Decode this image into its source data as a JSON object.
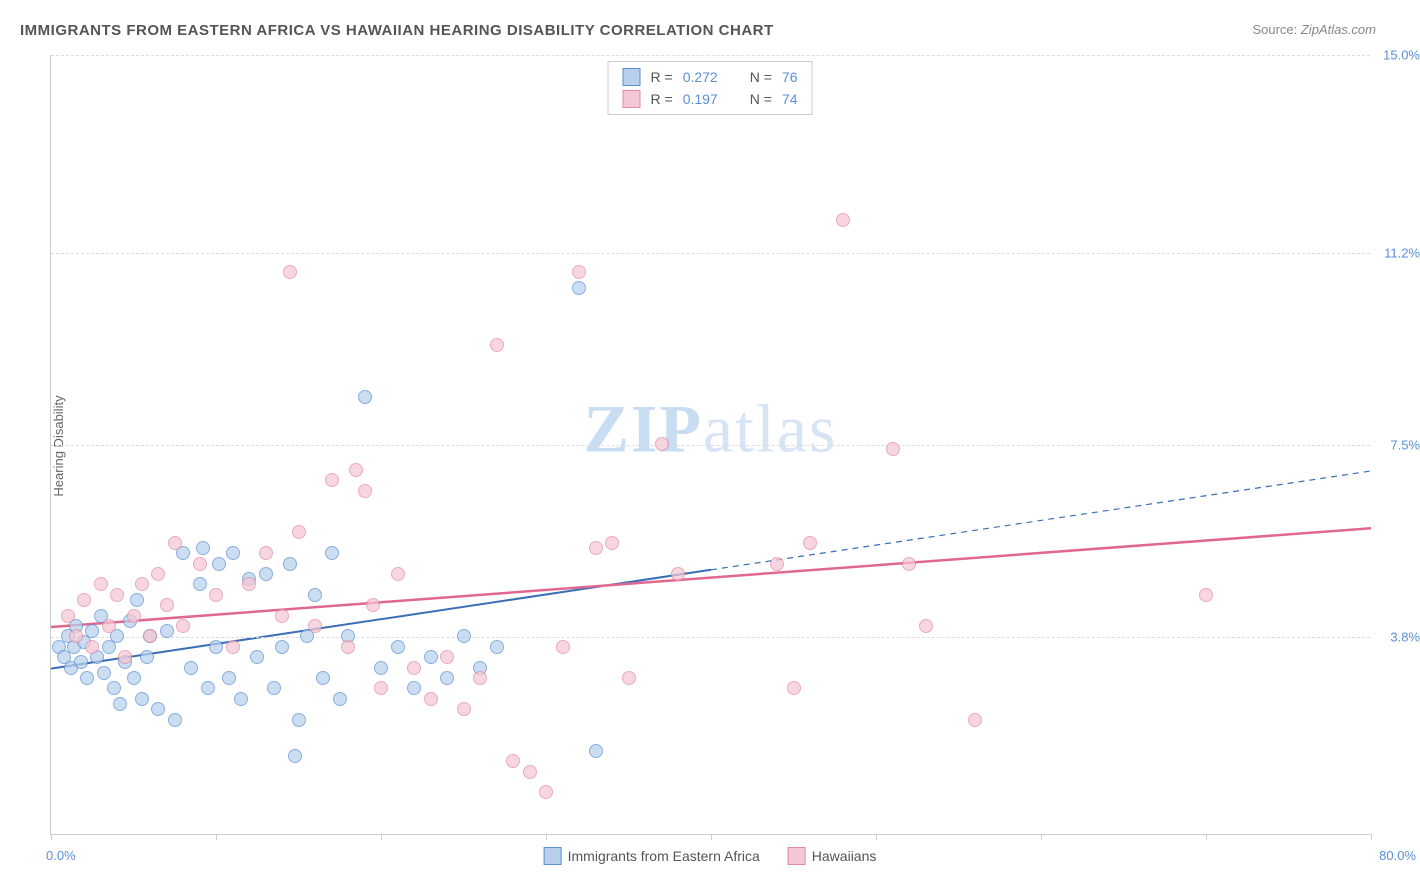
{
  "title": "IMMIGRANTS FROM EASTERN AFRICA VS HAWAIIAN HEARING DISABILITY CORRELATION CHART",
  "source_prefix": "Source: ",
  "source_name": "ZipAtlas.com",
  "y_axis_label": "Hearing Disability",
  "watermark": {
    "part1": "ZIP",
    "part2": "atlas"
  },
  "chart": {
    "type": "scatter",
    "xlim": [
      0,
      80
    ],
    "ylim": [
      0,
      15
    ],
    "y_ticks": [
      3.8,
      7.5,
      11.2,
      15.0
    ],
    "y_tick_labels": [
      "3.8%",
      "7.5%",
      "11.2%",
      "15.0%"
    ],
    "x_ticks": [
      0,
      10,
      20,
      30,
      40,
      50,
      60,
      70,
      80
    ],
    "x_min_label": "0.0%",
    "x_max_label": "80.0%",
    "background_color": "#ffffff",
    "grid_color": "#dddddd",
    "axis_color": "#cccccc",
    "tick_label_color": "#5b8fd6",
    "point_radius": 7,
    "point_opacity": 0.72,
    "series": [
      {
        "id": "eastern_africa",
        "label": "Immigrants from Eastern Africa",
        "fill_color": "#b8d0ec",
        "stroke_color": "#5b8fd6",
        "line_color": "#3a6fb7",
        "line_width": 2,
        "r_label": "R =",
        "r_value": "0.272",
        "n_label": "N =",
        "n_value": "76",
        "trend": {
          "solid": [
            [
              0,
              3.2
            ],
            [
              40,
              5.1
            ]
          ],
          "dashed": [
            [
              40,
              5.1
            ],
            [
              80,
              7.0
            ]
          ]
        },
        "points": [
          [
            0.5,
            3.6
          ],
          [
            0.8,
            3.4
          ],
          [
            1.0,
            3.8
          ],
          [
            1.2,
            3.2
          ],
          [
            1.4,
            3.6
          ],
          [
            1.5,
            4.0
          ],
          [
            1.8,
            3.3
          ],
          [
            2.0,
            3.7
          ],
          [
            2.2,
            3.0
          ],
          [
            2.5,
            3.9
          ],
          [
            2.8,
            3.4
          ],
          [
            3.0,
            4.2
          ],
          [
            3.2,
            3.1
          ],
          [
            3.5,
            3.6
          ],
          [
            3.8,
            2.8
          ],
          [
            4.0,
            3.8
          ],
          [
            4.2,
            2.5
          ],
          [
            4.5,
            3.3
          ],
          [
            4.8,
            4.1
          ],
          [
            5.0,
            3.0
          ],
          [
            5.2,
            4.5
          ],
          [
            5.5,
            2.6
          ],
          [
            5.8,
            3.4
          ],
          [
            6.0,
            3.8
          ],
          [
            6.5,
            2.4
          ],
          [
            7.0,
            3.9
          ],
          [
            7.5,
            2.2
          ],
          [
            8.0,
            5.4
          ],
          [
            8.5,
            3.2
          ],
          [
            9.0,
            4.8
          ],
          [
            9.2,
            5.5
          ],
          [
            9.5,
            2.8
          ],
          [
            10.0,
            3.6
          ],
          [
            10.2,
            5.2
          ],
          [
            10.8,
            3.0
          ],
          [
            11.0,
            5.4
          ],
          [
            11.5,
            2.6
          ],
          [
            12.0,
            4.9
          ],
          [
            12.5,
            3.4
          ],
          [
            13.0,
            5.0
          ],
          [
            13.5,
            2.8
          ],
          [
            14.0,
            3.6
          ],
          [
            14.5,
            5.2
          ],
          [
            15.0,
            2.2
          ],
          [
            15.5,
            3.8
          ],
          [
            16.0,
            4.6
          ],
          [
            16.5,
            3.0
          ],
          [
            17.0,
            5.4
          ],
          [
            17.5,
            2.6
          ],
          [
            18.0,
            3.8
          ],
          [
            14.8,
            1.5
          ],
          [
            19.0,
            8.4
          ],
          [
            20.0,
            3.2
          ],
          [
            21.0,
            3.6
          ],
          [
            22.0,
            2.8
          ],
          [
            23.0,
            3.4
          ],
          [
            24.0,
            3.0
          ],
          [
            25.0,
            3.8
          ],
          [
            32.0,
            10.5
          ],
          [
            33.0,
            1.6
          ],
          [
            26.0,
            3.2
          ],
          [
            27.0,
            3.6
          ]
        ]
      },
      {
        "id": "hawaiians",
        "label": "Hawaiians",
        "fill_color": "#f4c7d4",
        "stroke_color": "#e48aa4",
        "line_color": "#e06890",
        "line_width": 2.5,
        "r_label": "R =",
        "r_value": "0.197",
        "n_label": "N =",
        "n_value": "74",
        "trend": {
          "solid": [
            [
              0,
              4.0
            ],
            [
              80,
              5.9
            ]
          ],
          "dashed": null
        },
        "points": [
          [
            1.0,
            4.2
          ],
          [
            1.5,
            3.8
          ],
          [
            2.0,
            4.5
          ],
          [
            2.5,
            3.6
          ],
          [
            3.0,
            4.8
          ],
          [
            3.5,
            4.0
          ],
          [
            4.0,
            4.6
          ],
          [
            4.5,
            3.4
          ],
          [
            5.0,
            4.2
          ],
          [
            5.5,
            4.8
          ],
          [
            6.0,
            3.8
          ],
          [
            6.5,
            5.0
          ],
          [
            7.0,
            4.4
          ],
          [
            7.5,
            5.6
          ],
          [
            8.0,
            4.0
          ],
          [
            9.0,
            5.2
          ],
          [
            10.0,
            4.6
          ],
          [
            11.0,
            3.6
          ],
          [
            12.0,
            4.8
          ],
          [
            13.0,
            5.4
          ],
          [
            14.0,
            4.2
          ],
          [
            15.0,
            5.8
          ],
          [
            16.0,
            4.0
          ],
          [
            14.5,
            10.8
          ],
          [
            17.0,
            6.8
          ],
          [
            18.0,
            3.6
          ],
          [
            18.5,
            7.0
          ],
          [
            19.0,
            6.6
          ],
          [
            19.5,
            4.4
          ],
          [
            20.0,
            2.8
          ],
          [
            21.0,
            5.0
          ],
          [
            22.0,
            3.2
          ],
          [
            23.0,
            2.6
          ],
          [
            24.0,
            3.4
          ],
          [
            25.0,
            2.4
          ],
          [
            26.0,
            3.0
          ],
          [
            27.0,
            9.4
          ],
          [
            28.0,
            1.4
          ],
          [
            29.0,
            1.2
          ],
          [
            30.0,
            0.8
          ],
          [
            31.0,
            3.6
          ],
          [
            32.0,
            10.8
          ],
          [
            33.0,
            5.5
          ],
          [
            34.0,
            5.6
          ],
          [
            35.0,
            3.0
          ],
          [
            37.0,
            7.5
          ],
          [
            38.0,
            5.0
          ],
          [
            44.0,
            5.2
          ],
          [
            45.0,
            2.8
          ],
          [
            46.0,
            5.6
          ],
          [
            48.0,
            11.8
          ],
          [
            51.0,
            7.4
          ],
          [
            52.0,
            5.2
          ],
          [
            53.0,
            4.0
          ],
          [
            56.0,
            2.2
          ],
          [
            70.0,
            4.6
          ]
        ]
      }
    ]
  },
  "stats_box": {
    "rows": [
      {
        "series": "eastern_africa"
      },
      {
        "series": "hawaiians"
      }
    ]
  }
}
